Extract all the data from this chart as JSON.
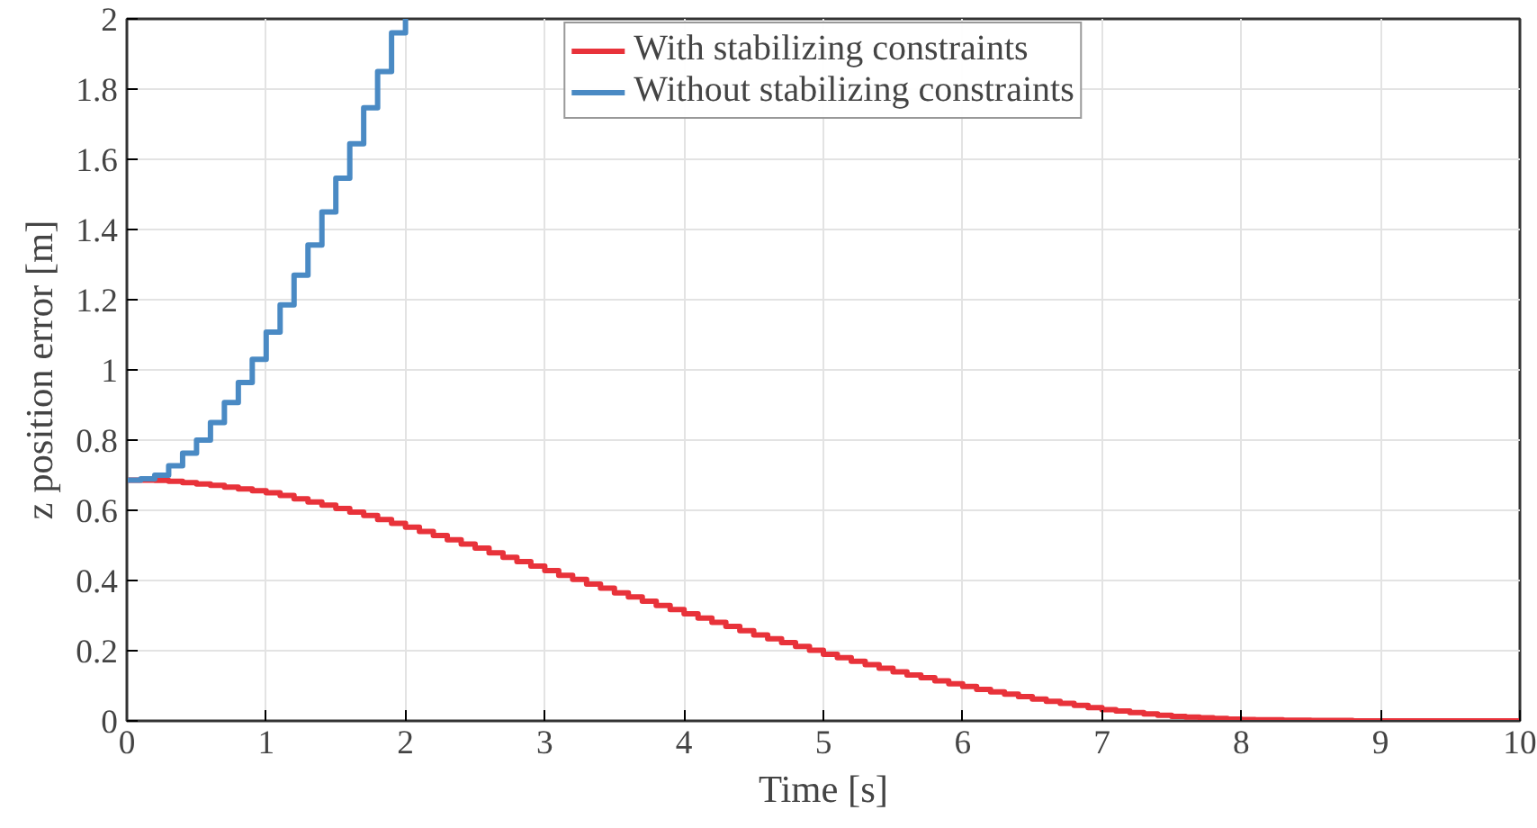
{
  "chart_data": {
    "type": "step",
    "xlabel": "Time [s]",
    "ylabel": "z position error [m]",
    "xlim": [
      0,
      10
    ],
    "ylim": [
      0,
      2
    ],
    "xticks": [
      0,
      1,
      2,
      3,
      4,
      5,
      6,
      7,
      8,
      9,
      10
    ],
    "yticks": [
      0,
      0.2,
      0.4,
      0.6,
      0.8,
      1,
      1.2,
      1.4,
      1.6,
      1.8,
      2
    ],
    "grid": true,
    "legend": "top",
    "series": [
      {
        "name": "With stabilizing constraints",
        "color": "#e8323a",
        "x": [
          0,
          0.1,
          0.2,
          0.3,
          0.4,
          0.5,
          0.6,
          0.7,
          0.8,
          0.9,
          1,
          1.1,
          1.2,
          1.3,
          1.4,
          1.5,
          1.6,
          1.7,
          1.8,
          1.9,
          2,
          2.1,
          2.2,
          2.3,
          2.4,
          2.5,
          2.6,
          2.7,
          2.8,
          2.9,
          3,
          3.1,
          3.2,
          3.3,
          3.4,
          3.5,
          3.6,
          3.7,
          3.8,
          3.9,
          4,
          4.1,
          4.2,
          4.3,
          4.4,
          4.5,
          4.6,
          4.7,
          4.8,
          4.9,
          5,
          5.1,
          5.2,
          5.3,
          5.4,
          5.5,
          5.6,
          5.7,
          5.8,
          5.9,
          6,
          6.1,
          6.2,
          6.3,
          6.4,
          6.5,
          6.6,
          6.7,
          6.8,
          6.9,
          7,
          7.1,
          7.2,
          7.3,
          7.4,
          7.5,
          7.6,
          7.7,
          7.8,
          7.9,
          8,
          8.1,
          8.2,
          8.3,
          8.4,
          8.5,
          8.6,
          8.7,
          8.8,
          9,
          9.5,
          10
        ],
        "values": [
          0.686,
          0.686,
          0.685,
          0.683,
          0.679,
          0.675,
          0.671,
          0.666,
          0.661,
          0.656,
          0.65,
          0.642,
          0.633,
          0.624,
          0.615,
          0.605,
          0.595,
          0.585,
          0.574,
          0.563,
          0.552,
          0.54,
          0.528,
          0.516,
          0.504,
          0.492,
          0.479,
          0.466,
          0.454,
          0.441,
          0.428,
          0.415,
          0.403,
          0.39,
          0.378,
          0.365,
          0.353,
          0.341,
          0.329,
          0.317,
          0.305,
          0.293,
          0.281,
          0.269,
          0.257,
          0.245,
          0.234,
          0.223,
          0.212,
          0.201,
          0.19,
          0.18,
          0.17,
          0.16,
          0.15,
          0.14,
          0.131,
          0.123,
          0.114,
          0.106,
          0.098,
          0.09,
          0.083,
          0.076,
          0.069,
          0.062,
          0.056,
          0.05,
          0.044,
          0.038,
          0.032,
          0.028,
          0.024,
          0.02,
          0.016,
          0.013,
          0.011,
          0.009,
          0.007,
          0.005,
          0.004,
          0.003,
          0.003,
          0.002,
          0.002,
          0.001,
          0.001,
          0.001,
          0,
          0,
          0,
          0
        ]
      },
      {
        "name": "Without stabilizing constraints",
        "color": "#4a8ac4",
        "x": [
          0,
          0.1,
          0.2,
          0.3,
          0.4,
          0.5,
          0.6,
          0.7,
          0.8,
          0.9,
          1,
          1.1,
          1.2,
          1.3,
          1.4,
          1.5,
          1.6,
          1.7,
          1.8,
          1.9,
          2
        ],
        "values": [
          0.686,
          0.69,
          0.7,
          0.727,
          0.763,
          0.8,
          0.85,
          0.907,
          0.964,
          1.03,
          1.108,
          1.185,
          1.27,
          1.356,
          1.45,
          1.546,
          1.644,
          1.747,
          1.85,
          1.96,
          2
        ]
      }
    ]
  }
}
